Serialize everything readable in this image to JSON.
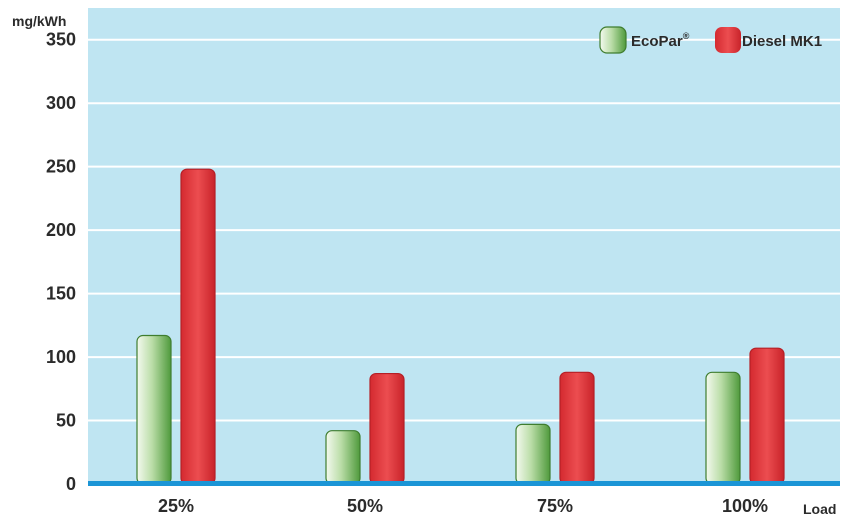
{
  "chart_data": {
    "type": "bar",
    "ylabel": "mg/kWh",
    "xlabel": "Load",
    "categories": [
      "25%",
      "50%",
      "75%",
      "100%"
    ],
    "series": [
      {
        "name": "EcoPar",
        "name_mark": "®",
        "color": "#8fc07a",
        "values": [
          117,
          42,
          47,
          88
        ]
      },
      {
        "name": "Diesel MK1",
        "color": "#e03a3e",
        "values": [
          248,
          87,
          88,
          107
        ]
      }
    ],
    "yticks": [
      0,
      50,
      100,
      150,
      200,
      250,
      300,
      350
    ],
    "ylim": [
      0,
      375
    ],
    "grid": true,
    "legend_position": "top-right",
    "colors": {
      "plot_background": "#bfe5f2",
      "gridline": "#ffffff",
      "baseline": "#1b95d6"
    }
  }
}
